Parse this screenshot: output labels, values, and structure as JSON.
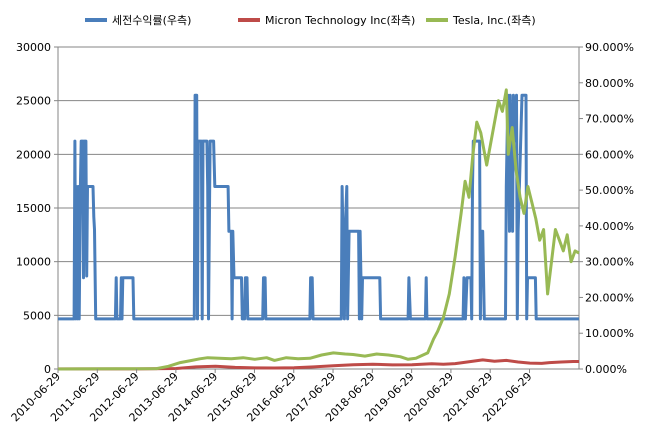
{
  "chart_data": {
    "type": "line",
    "x_tick_labels": [
      "2010-06-29",
      "2011-06-29",
      "2012-06-29",
      "2013-06-29",
      "2014-06-29",
      "2015-06-29",
      "2016-06-29",
      "2017-06-29",
      "2018-06-29",
      "2019-06-29",
      "2020-06-29",
      "2021-06-29",
      "2022-06-29"
    ],
    "x_range": [
      2010.49,
      2023.75
    ],
    "left_axis": {
      "ylim": [
        0,
        30000
      ],
      "ticks": [
        0,
        5000,
        10000,
        15000,
        20000,
        25000,
        30000
      ],
      "tick_labels": [
        "0",
        "5000",
        "10000",
        "15000",
        "20000",
        "25000",
        "30000"
      ]
    },
    "right_axis": {
      "ylim": [
        0,
        0.9
      ],
      "ticks": [
        0,
        0.1,
        0.2,
        0.3,
        0.4,
        0.5,
        0.6,
        0.7,
        0.8,
        0.9
      ],
      "tick_labels": [
        "0.000%",
        "10.000%",
        "20.000%",
        "30.000%",
        "40.000%",
        "50.000%",
        "60.000%",
        "70.000%",
        "80.000%",
        "90.000%"
      ]
    },
    "grid": "horizontal",
    "legend_position": "top",
    "series": [
      {
        "name": "세전수익률(우측)",
        "axis": "right",
        "color": "#4a7ebb",
        "points": [
          [
            2010.49,
            0.14
          ],
          [
            2010.9,
            0.14
          ],
          [
            2010.92,
            0.637
          ],
          [
            2010.94,
            0.14
          ],
          [
            2010.96,
            0.51
          ],
          [
            2010.99,
            0.14
          ],
          [
            2011.01,
            0.51
          ],
          [
            2011.03,
            0.14
          ],
          [
            2011.06,
            0.51
          ],
          [
            2011.08,
            0.637
          ],
          [
            2011.12,
            0.637
          ],
          [
            2011.14,
            0.255
          ],
          [
            2011.16,
            0.637
          ],
          [
            2011.2,
            0.637
          ],
          [
            2011.22,
            0.26
          ],
          [
            2011.24,
            0.51
          ],
          [
            2011.38,
            0.51
          ],
          [
            2011.4,
            0.425
          ],
          [
            2011.42,
            0.39
          ],
          [
            2011.45,
            0.14
          ],
          [
            2011.95,
            0.14
          ],
          [
            2011.97,
            0.255
          ],
          [
            2011.99,
            0.14
          ],
          [
            2012.08,
            0.14
          ],
          [
            2012.1,
            0.255
          ],
          [
            2012.12,
            0.14
          ],
          [
            2012.14,
            0.255
          ],
          [
            2012.4,
            0.255
          ],
          [
            2012.42,
            0.14
          ],
          [
            2013.96,
            0.14
          ],
          [
            2013.98,
            0.765
          ],
          [
            2014.02,
            0.765
          ],
          [
            2014.04,
            0.14
          ],
          [
            2014.06,
            0.637
          ],
          [
            2014.14,
            0.637
          ],
          [
            2014.16,
            0.14
          ],
          [
            2014.18,
            0.637
          ],
          [
            2014.28,
            0.637
          ],
          [
            2014.3,
            0.51
          ],
          [
            2014.32,
            0.14
          ],
          [
            2014.36,
            0.637
          ],
          [
            2014.45,
            0.637
          ],
          [
            2014.48,
            0.51
          ],
          [
            2014.82,
            0.51
          ],
          [
            2014.84,
            0.385
          ],
          [
            2014.9,
            0.385
          ],
          [
            2014.92,
            0.14
          ],
          [
            2014.94,
            0.385
          ],
          [
            2014.97,
            0.255
          ],
          [
            2015.16,
            0.255
          ],
          [
            2015.18,
            0.14
          ],
          [
            2015.24,
            0.14
          ],
          [
            2015.26,
            0.255
          ],
          [
            2015.3,
            0.255
          ],
          [
            2015.32,
            0.14
          ],
          [
            2015.7,
            0.14
          ],
          [
            2015.72,
            0.255
          ],
          [
            2015.76,
            0.255
          ],
          [
            2015.78,
            0.14
          ],
          [
            2016.9,
            0.14
          ],
          [
            2016.92,
            0.255
          ],
          [
            2016.96,
            0.255
          ],
          [
            2016.98,
            0.14
          ],
          [
            2017.7,
            0.14
          ],
          [
            2017.72,
            0.51
          ],
          [
            2017.74,
            0.385
          ],
          [
            2017.78,
            0.14
          ],
          [
            2017.8,
            0.385
          ],
          [
            2017.84,
            0.51
          ],
          [
            2017.86,
            0.14
          ],
          [
            2017.9,
            0.385
          ],
          [
            2018.14,
            0.385
          ],
          [
            2018.16,
            0.14
          ],
          [
            2018.18,
            0.385
          ],
          [
            2018.22,
            0.14
          ],
          [
            2018.24,
            0.255
          ],
          [
            2018.68,
            0.255
          ],
          [
            2018.7,
            0.14
          ],
          [
            2019.4,
            0.14
          ],
          [
            2019.42,
            0.255
          ],
          [
            2019.46,
            0.14
          ],
          [
            2019.84,
            0.14
          ],
          [
            2019.86,
            0.255
          ],
          [
            2019.88,
            0.14
          ],
          [
            2020.8,
            0.14
          ],
          [
            2020.82,
            0.255
          ],
          [
            2020.86,
            0.14
          ],
          [
            2020.9,
            0.255
          ],
          [
            2021.0,
            0.255
          ],
          [
            2021.02,
            0.14
          ],
          [
            2021.04,
            0.51
          ],
          [
            2021.06,
            0.637
          ],
          [
            2021.22,
            0.637
          ],
          [
            2021.24,
            0.14
          ],
          [
            2021.26,
            0.385
          ],
          [
            2021.3,
            0.385
          ],
          [
            2021.34,
            0.14
          ],
          [
            2021.88,
            0.14
          ],
          [
            2021.9,
            0.51
          ],
          [
            2021.92,
            0.637
          ],
          [
            2021.94,
            0.765
          ],
          [
            2021.98,
            0.385
          ],
          [
            2022.0,
            0.765
          ],
          [
            2022.06,
            0.385
          ],
          [
            2022.08,
            0.765
          ],
          [
            2022.14,
            0.637
          ],
          [
            2022.16,
            0.765
          ],
          [
            2022.18,
            0.14
          ],
          [
            2022.2,
            0.385
          ],
          [
            2022.3,
            0.765
          ],
          [
            2022.4,
            0.765
          ],
          [
            2022.42,
            0.14
          ],
          [
            2022.44,
            0.255
          ],
          [
            2022.64,
            0.255
          ],
          [
            2022.66,
            0.14
          ],
          [
            2023.75,
            0.14
          ]
        ]
      },
      {
        "name": "Micron Technology Inc(좌측)",
        "axis": "left",
        "color": "#be4b48",
        "points": [
          [
            2010.49,
            10
          ],
          [
            2011.5,
            10
          ],
          [
            2012.5,
            10
          ],
          [
            2013.5,
            50
          ],
          [
            2014.0,
            200
          ],
          [
            2014.5,
            260
          ],
          [
            2015.0,
            150
          ],
          [
            2015.5,
            100
          ],
          [
            2016.0,
            90
          ],
          [
            2016.5,
            110
          ],
          [
            2017.0,
            200
          ],
          [
            2017.5,
            300
          ],
          [
            2018.0,
            400
          ],
          [
            2018.5,
            450
          ],
          [
            2019.0,
            380
          ],
          [
            2019.5,
            390
          ],
          [
            2020.0,
            480
          ],
          [
            2020.3,
            450
          ],
          [
            2020.6,
            500
          ],
          [
            2021.0,
            700
          ],
          [
            2021.3,
            850
          ],
          [
            2021.6,
            720
          ],
          [
            2021.9,
            800
          ],
          [
            2022.2,
            650
          ],
          [
            2022.5,
            550
          ],
          [
            2022.8,
            520
          ],
          [
            2023.0,
            600
          ],
          [
            2023.3,
            650
          ],
          [
            2023.6,
            700
          ],
          [
            2023.75,
            700
          ]
        ]
      },
      {
        "name": "Tesla, Inc.(좌측)",
        "axis": "left",
        "color": "#98b954",
        "points": [
          [
            2010.49,
            0
          ],
          [
            2011.0,
            10
          ],
          [
            2012.0,
            20
          ],
          [
            2013.0,
            40
          ],
          [
            2013.3,
            250
          ],
          [
            2013.6,
            600
          ],
          [
            2013.9,
            800
          ],
          [
            2014.1,
            950
          ],
          [
            2014.3,
            1050
          ],
          [
            2014.6,
            1000
          ],
          [
            2014.9,
            950
          ],
          [
            2015.2,
            1050
          ],
          [
            2015.5,
            900
          ],
          [
            2015.8,
            1050
          ],
          [
            2016.0,
            800
          ],
          [
            2016.3,
            1050
          ],
          [
            2016.6,
            950
          ],
          [
            2016.9,
            1000
          ],
          [
            2017.2,
            1300
          ],
          [
            2017.5,
            1500
          ],
          [
            2017.8,
            1400
          ],
          [
            2018.0,
            1350
          ],
          [
            2018.3,
            1200
          ],
          [
            2018.6,
            1400
          ],
          [
            2018.9,
            1300
          ],
          [
            2019.2,
            1150
          ],
          [
            2019.4,
            900
          ],
          [
            2019.6,
            1000
          ],
          [
            2019.9,
            1500
          ],
          [
            2020.05,
            2800
          ],
          [
            2020.15,
            3500
          ],
          [
            2020.3,
            4800
          ],
          [
            2020.45,
            7000
          ],
          [
            2020.6,
            10500
          ],
          [
            2020.75,
            14500
          ],
          [
            2020.85,
            17500
          ],
          [
            2020.95,
            16000
          ],
          [
            2021.05,
            20000
          ],
          [
            2021.15,
            23000
          ],
          [
            2021.25,
            22000
          ],
          [
            2021.4,
            19000
          ],
          [
            2021.55,
            22000
          ],
          [
            2021.7,
            25000
          ],
          [
            2021.8,
            24000
          ],
          [
            2021.9,
            26000
          ],
          [
            2021.95,
            20000
          ],
          [
            2022.05,
            22500
          ],
          [
            2022.15,
            18500
          ],
          [
            2022.25,
            16000
          ],
          [
            2022.35,
            14500
          ],
          [
            2022.45,
            17000
          ],
          [
            2022.55,
            15500
          ],
          [
            2022.65,
            14000
          ],
          [
            2022.75,
            12000
          ],
          [
            2022.85,
            13000
          ],
          [
            2022.95,
            7000
          ],
          [
            2023.05,
            10000
          ],
          [
            2023.15,
            13000
          ],
          [
            2023.25,
            12000
          ],
          [
            2023.35,
            11000
          ],
          [
            2023.45,
            12500
          ],
          [
            2023.55,
            10000
          ],
          [
            2023.65,
            11000
          ],
          [
            2023.75,
            10800
          ]
        ]
      }
    ]
  }
}
